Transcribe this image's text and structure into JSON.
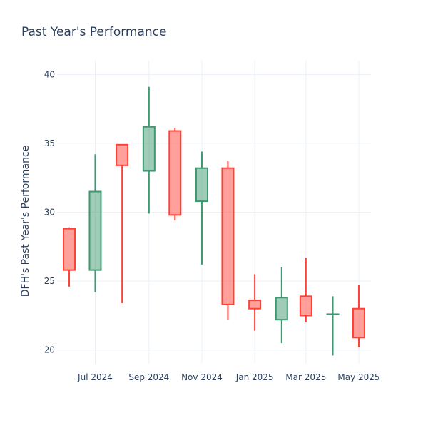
{
  "chart_data": {
    "type": "candlestick",
    "title": "Past Year's Performance",
    "ylabel": "DFH's Past Year's Performance",
    "xlabel": "",
    "ylim": [
      19,
      41
    ],
    "yticks": [
      20,
      25,
      30,
      35,
      40
    ],
    "grid": true,
    "legend": "none",
    "colors": {
      "increasing": "#3d9970",
      "decreasing": "#ff4136"
    },
    "x_ticks": [
      "Jul 2024",
      "Sep 2024",
      "Nov 2024",
      "Jan 2025",
      "Mar 2025",
      "May 2025"
    ],
    "x_tick_dates": [
      "2024-07-01",
      "2024-09-01",
      "2024-11-01",
      "2025-01-01",
      "2025-03-01",
      "2025-05-01"
    ],
    "x_range": [
      "2024-05-18",
      "2025-05-15"
    ],
    "candles": [
      {
        "date": "2024-06-01",
        "open": 28.8,
        "high": 28.9,
        "low": 24.6,
        "close": 25.8
      },
      {
        "date": "2024-07-01",
        "open": 25.8,
        "high": 34.2,
        "low": 24.2,
        "close": 31.5
      },
      {
        "date": "2024-08-01",
        "open": 34.9,
        "high": 34.9,
        "low": 23.4,
        "close": 33.4
      },
      {
        "date": "2024-09-01",
        "open": 33.0,
        "high": 39.1,
        "low": 29.9,
        "close": 36.2
      },
      {
        "date": "2024-10-01",
        "open": 35.9,
        "high": 36.1,
        "low": 29.4,
        "close": 29.8
      },
      {
        "date": "2024-11-01",
        "open": 30.8,
        "high": 34.4,
        "low": 26.2,
        "close": 33.2
      },
      {
        "date": "2024-12-01",
        "open": 33.2,
        "high": 33.7,
        "low": 22.2,
        "close": 23.3
      },
      {
        "date": "2025-01-01",
        "open": 23.6,
        "high": 25.5,
        "low": 21.4,
        "close": 23.0
      },
      {
        "date": "2025-02-01",
        "open": 22.2,
        "high": 26.0,
        "low": 20.5,
        "close": 23.8
      },
      {
        "date": "2025-03-01",
        "open": 23.9,
        "high": 26.7,
        "low": 22.0,
        "close": 22.5
      },
      {
        "date": "2025-04-01",
        "open": 22.6,
        "high": 23.9,
        "low": 19.6,
        "close": 22.6
      },
      {
        "date": "2025-05-01",
        "open": 23.0,
        "high": 24.7,
        "low": 20.2,
        "close": 20.9
      }
    ]
  }
}
